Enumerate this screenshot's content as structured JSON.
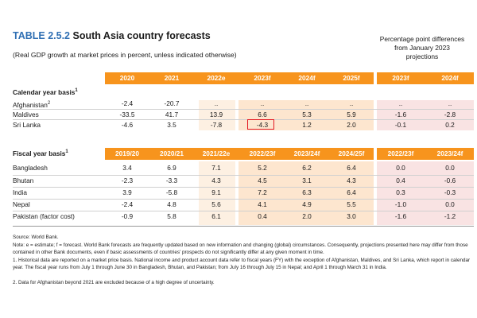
{
  "title_num": "TABLE 2.5.2",
  "title_text": "South Asia country forecasts",
  "subtitle": "(Real GDP growth at market prices in percent, unless indicated otherwise)",
  "pp_head": [
    "Percentage point differences",
    "from January 2023",
    "projections"
  ],
  "calendar": {
    "label": "Calendar year basis",
    "label_sup": "1",
    "headers": [
      "2020",
      "2021",
      "2022e",
      "2023f",
      "2024f",
      "2025f"
    ],
    "pp_headers": [
      "2023f",
      "2024f"
    ],
    "rows": [
      {
        "country": "Afghanistan",
        "sup": "2",
        "vals": [
          "-2.4",
          "-20.7",
          "..",
          "..",
          "..",
          ".."
        ],
        "pp": [
          "..",
          ".."
        ]
      },
      {
        "country": "Maldives",
        "sup": "",
        "vals": [
          "-33.5",
          "41.7",
          "13.9",
          "6.6",
          "5.3",
          "5.9"
        ],
        "pp": [
          "-1.6",
          "-2.8"
        ]
      },
      {
        "country": "Sri Lanka",
        "sup": "",
        "vals": [
          "-4.6",
          "3.5",
          "-7.8",
          "-4.3",
          "1.2",
          "2.0"
        ],
        "pp": [
          "-0.1",
          "0.2"
        ]
      }
    ]
  },
  "fiscal": {
    "label": "Fiscal year basis",
    "label_sup": "1",
    "headers": [
      "2019/20",
      "2020/21",
      "2021/22e",
      "2022/23f",
      "2023/24f",
      "2024/25f"
    ],
    "pp_headers": [
      "2022/23f",
      "2023/24f"
    ],
    "rows": [
      {
        "country": "Bangladesh",
        "vals": [
          "3.4",
          "6.9",
          "7.1",
          "5.2",
          "6.2",
          "6.4"
        ],
        "pp": [
          "0.0",
          "0.0"
        ]
      },
      {
        "country": "Bhutan",
        "vals": [
          "-2.3",
          "-3.3",
          "4.3",
          "4.5",
          "3.1",
          "4.3"
        ],
        "pp": [
          "0.4",
          "-0.6"
        ]
      },
      {
        "country": "India",
        "vals": [
          "3.9",
          "-5.8",
          "9.1",
          "7.2",
          "6.3",
          "6.4"
        ],
        "pp": [
          "0.3",
          "-0.3"
        ]
      },
      {
        "country": "Nepal",
        "vals": [
          "-2.4",
          "4.8",
          "5.6",
          "4.1",
          "4.9",
          "5.5"
        ],
        "pp": [
          "-1.0",
          "0.0"
        ]
      },
      {
        "country": "Pakistan (factor cost)",
        "vals": [
          "-0.9",
          "5.8",
          "6.1",
          "0.4",
          "2.0",
          "3.0"
        ],
        "pp": [
          "-1.6",
          "-1.2"
        ]
      }
    ]
  },
  "notes": {
    "source": "Source: World Bank.",
    "note": "Note: e = estimate; f = forecast. World Bank forecasts are frequently updated based on new information and changing (global) circumstances. Consequently, projections presented here may differ from those contained in other Bank documents, even if basic assessments of countries' prospects do not significantly differ at any given moment in time.",
    "fn1": "1. Historical data are reported on a market price basis. National income and product account data refer to fiscal years (FY) with the exception of Afghanistan, Maldives, and Sri Lanka, which report in calendar year. The fiscal year runs from July 1 through June 30 in Bangladesh, Bhutan, and Pakistan; from July 16 through July 15 in Nepal; and April 1 through March 31 in India.",
    "fn2": "2. Data for Afghanistan beyond 2021 are excluded because of a high degree of uncertainty."
  },
  "colors": {
    "header_orange": "#f7941d",
    "title_blue": "#2f6fb3",
    "forecast_shade": "#fde6cf",
    "pp_shade": "#f9e3e3",
    "highlight_red": "#e31b23"
  }
}
